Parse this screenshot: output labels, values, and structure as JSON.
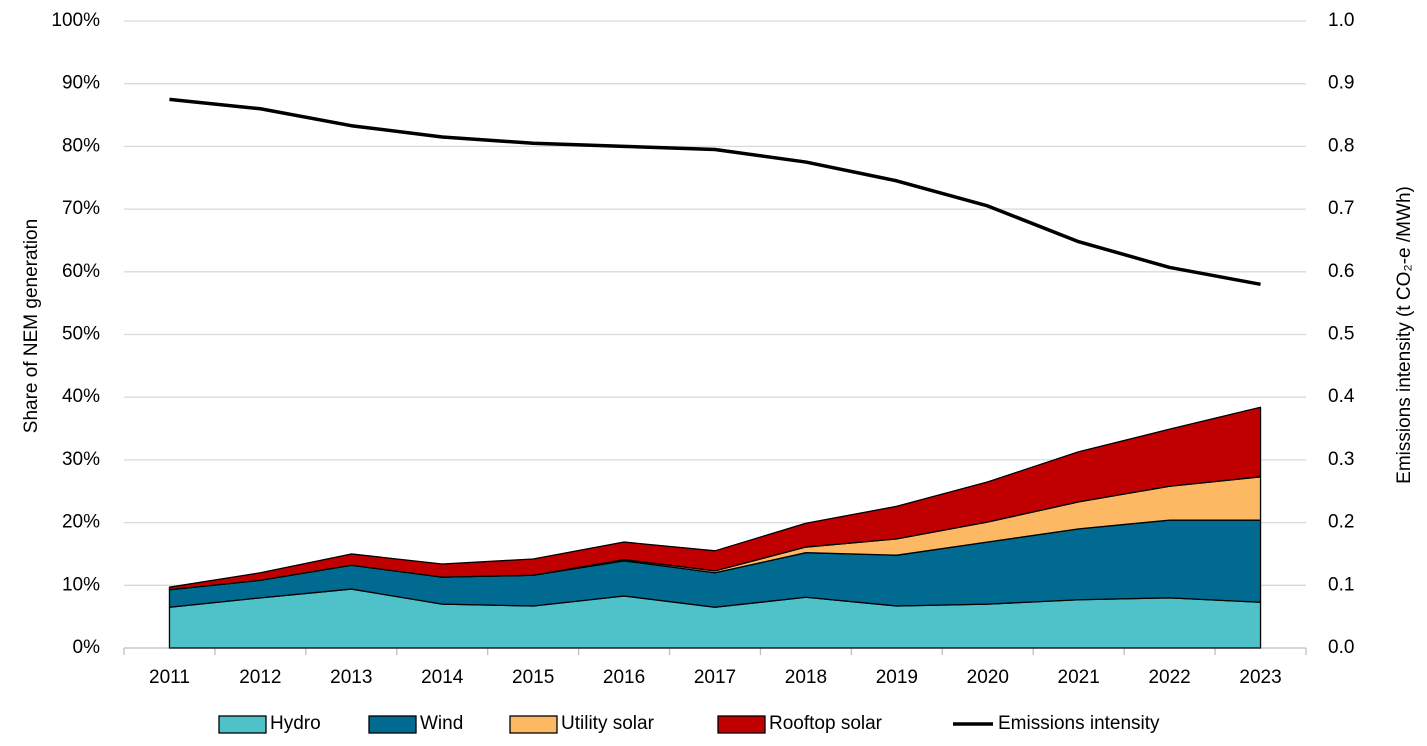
{
  "chart_data": {
    "type": "area",
    "y_label": "Share of NEM generation",
    "y2_label": "Emissions intensity (t CO₂-e /MWh)",
    "categories": [
      "2011",
      "2012",
      "2013",
      "2014",
      "2015",
      "2016",
      "2017",
      "2018",
      "2019",
      "2020",
      "2021",
      "2022",
      "2023"
    ],
    "series": [
      {
        "name": "Hydro",
        "color": "#4fc1c9",
        "values": [
          6.5,
          8.0,
          9.4,
          7.0,
          6.7,
          8.3,
          6.5,
          8.1,
          6.7,
          7.0,
          7.7,
          8.0,
          7.3
        ]
      },
      {
        "name": "Wind",
        "color": "#006a91",
        "values": [
          2.8,
          2.8,
          3.8,
          4.3,
          4.9,
          5.6,
          5.5,
          7.1,
          8.1,
          9.9,
          11.3,
          12.4,
          13.1
        ]
      },
      {
        "name": "Utility solar",
        "color": "#fdb863",
        "values": [
          0,
          0,
          0,
          0,
          0,
          0.2,
          0.3,
          0.9,
          2.6,
          3.2,
          4.3,
          5.4,
          6.9
        ]
      },
      {
        "name": "Rooftop solar",
        "color": "#c00000",
        "values": [
          0.4,
          1.2,
          1.8,
          2.1,
          2.6,
          2.8,
          3.2,
          3.8,
          5.2,
          6.4,
          8.0,
          9.1,
          11.1
        ]
      },
      {
        "name": "Emissions intensity",
        "type": "line",
        "axis": "y2",
        "color": "#000000",
        "values": [
          0.875,
          0.86,
          0.833,
          0.815,
          0.805,
          0.8,
          0.795,
          0.775,
          0.745,
          0.705,
          0.648,
          0.607,
          0.58
        ]
      }
    ],
    "ylim": [
      0,
      100
    ],
    "yticks": [
      {
        "value": 0,
        "label": "0%"
      },
      {
        "value": 10,
        "label": "10%"
      },
      {
        "value": 20,
        "label": "20%"
      },
      {
        "value": 30,
        "label": "30%"
      },
      {
        "value": 40,
        "label": "40%"
      },
      {
        "value": 50,
        "label": "50%"
      },
      {
        "value": 60,
        "label": "60%"
      },
      {
        "value": 70,
        "label": "70%"
      },
      {
        "value": 80,
        "label": "80%"
      },
      {
        "value": 90,
        "label": "90%"
      },
      {
        "value": 100,
        "label": "100%"
      }
    ],
    "y2lim": [
      0,
      1
    ],
    "y2ticks": [
      {
        "value": 0,
        "label": "0.0"
      },
      0.1,
      0.2,
      0.3,
      0.4,
      0.5,
      0.6,
      0.7,
      0.8,
      0.9,
      {
        "value": 1,
        "label": "1.0"
      }
    ],
    "grid": true
  }
}
